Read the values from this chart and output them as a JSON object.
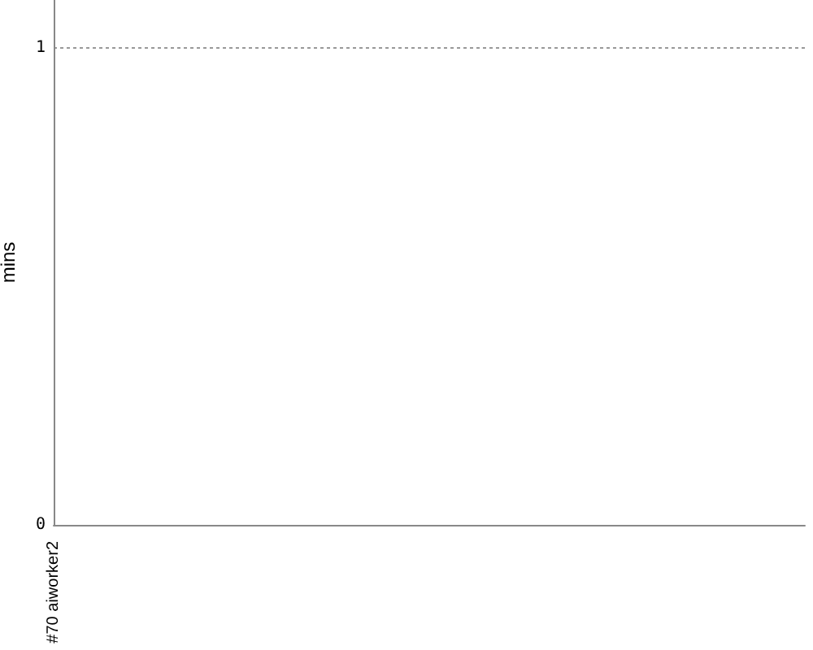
{
  "chart_data": {
    "type": "area",
    "ylabel": "mins",
    "categories": [
      "#70 aiworker2"
    ],
    "values": [
      null
    ],
    "ylim": [
      0,
      1.1
    ],
    "yticks": [
      0,
      1
    ],
    "grid": "y"
  }
}
